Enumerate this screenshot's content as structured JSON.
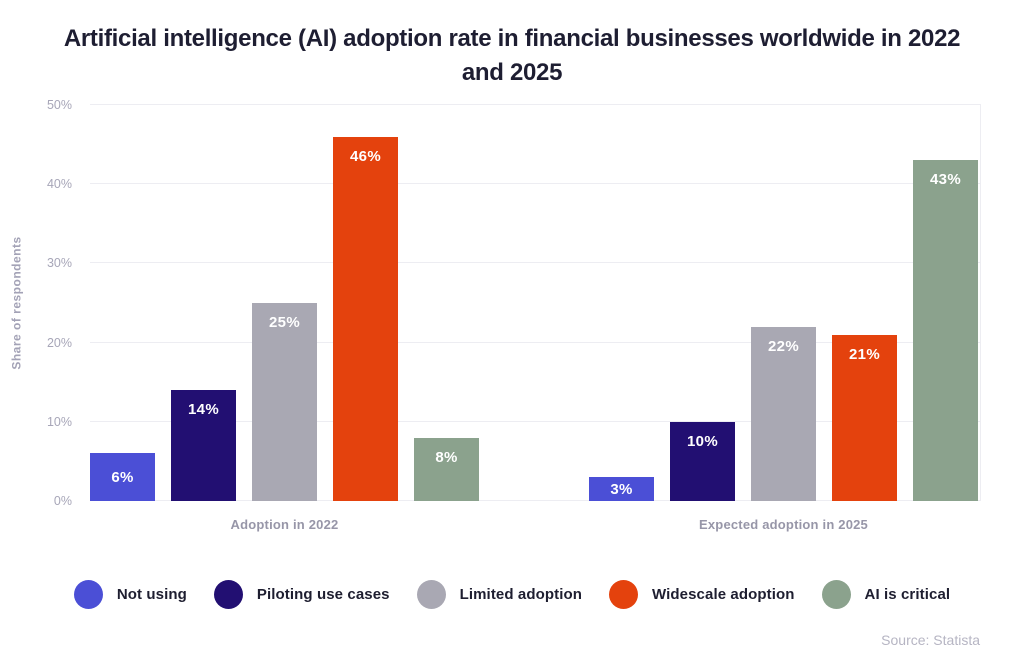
{
  "title": "Artificial intelligence (AI) adoption rate in financial businesses worldwide in 2022 and 2025",
  "y_axis": {
    "label": "Share of respondents"
  },
  "source": "Source: Statista",
  "chart_data": {
    "type": "bar",
    "title": "Artificial intelligence (AI) adoption rate in financial businesses worldwide in 2022 and 2025",
    "xlabel": "",
    "ylabel": "Share of respondents",
    "categories": [
      "Adoption in 2022",
      "Expected adoption in 2025"
    ],
    "series": [
      {
        "name": "Not using",
        "color": "#4b4fd6",
        "values": [
          6,
          3
        ]
      },
      {
        "name": "Piloting use cases",
        "color": "#220f72",
        "values": [
          14,
          10
        ]
      },
      {
        "name": "Limited adoption",
        "color": "#a9a8b3",
        "values": [
          25,
          22
        ]
      },
      {
        "name": "Widescale adoption",
        "color": "#e4420d",
        "values": [
          46,
          21
        ]
      },
      {
        "name": "AI is critical",
        "color": "#8ba28d",
        "values": [
          8,
          43
        ]
      }
    ],
    "ylim": [
      0,
      50
    ],
    "yticks": [
      0,
      10,
      20,
      30,
      40,
      50
    ],
    "tick_suffix": "%",
    "value_suffix": "%",
    "grid": true,
    "legend_position": "bottom",
    "value_labels": "inside-top",
    "source": "Source: Statista"
  },
  "colors": {
    "background": "#ffffff",
    "grid": "#ededf2",
    "title_text": "#1e1e32",
    "axis_text": "#a7a6b8",
    "category_text": "#9796a8",
    "legend_text": "#1e1e30",
    "value_label_text": "#ffffff",
    "source_text": "#b6b5c3"
  }
}
